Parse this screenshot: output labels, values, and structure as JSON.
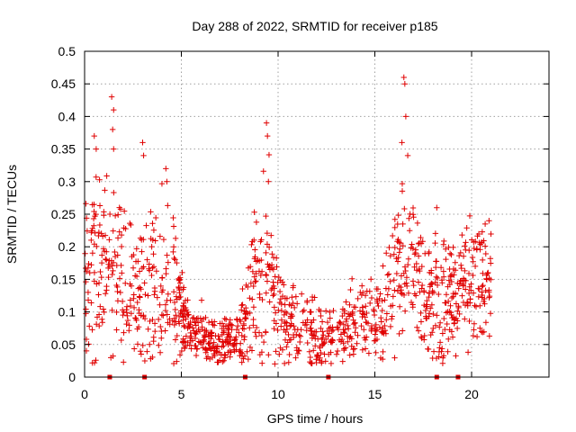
{
  "chart_data": {
    "type": "scatter",
    "title": "Day 288 of 2022, SRMTID for receiver p185",
    "xlabel": "GPS time / hours",
    "ylabel": "SRMTID / TECUs",
    "xlim": [
      0,
      24
    ],
    "ylim": [
      0,
      0.5
    ],
    "x_ticks": [
      0,
      5,
      10,
      15,
      20
    ],
    "x_tick_labels": [
      "0",
      "5",
      "10",
      "15",
      "20"
    ],
    "y_ticks": [
      0,
      0.05,
      0.1,
      0.15,
      0.2,
      0.25,
      0.3,
      0.35,
      0.4,
      0.45,
      0.5
    ],
    "y_tick_labels": [
      "0",
      "0.05",
      "0.1",
      "0.15",
      "0.2",
      "0.25",
      "0.3",
      "0.35",
      "0.4",
      "0.45",
      "0.5"
    ],
    "grid": true,
    "marker": "+",
    "color": "#e00000",
    "envelope": {
      "description": "approximate median and spread of the SRMTID point cloud versus time (hours, TECU)",
      "x": [
        0.0,
        0.5,
        1.0,
        1.5,
        2.0,
        2.5,
        3.0,
        3.5,
        4.0,
        4.5,
        5.0,
        5.5,
        6.0,
        6.5,
        7.0,
        7.5,
        8.0,
        8.5,
        9.0,
        9.5,
        10.0,
        10.5,
        11.0,
        11.5,
        12.0,
        12.5,
        13.0,
        13.5,
        14.0,
        14.5,
        15.0,
        15.5,
        16.0,
        16.5,
        17.0,
        17.5,
        18.0,
        18.5,
        19.0,
        19.5,
        20.0,
        20.5,
        21.0
      ],
      "median": [
        0.15,
        0.19,
        0.17,
        0.18,
        0.14,
        0.13,
        0.12,
        0.14,
        0.15,
        0.13,
        0.11,
        0.07,
        0.06,
        0.055,
        0.05,
        0.055,
        0.065,
        0.1,
        0.14,
        0.16,
        0.1,
        0.08,
        0.075,
        0.075,
        0.065,
        0.06,
        0.06,
        0.07,
        0.09,
        0.09,
        0.085,
        0.1,
        0.15,
        0.19,
        0.17,
        0.13,
        0.11,
        0.12,
        0.12,
        0.14,
        0.15,
        0.16,
        0.15
      ],
      "spread": [
        0.06,
        0.08,
        0.07,
        0.08,
        0.06,
        0.05,
        0.06,
        0.06,
        0.07,
        0.06,
        0.04,
        0.02,
        0.02,
        0.02,
        0.02,
        0.02,
        0.03,
        0.05,
        0.07,
        0.07,
        0.04,
        0.03,
        0.03,
        0.03,
        0.025,
        0.02,
        0.02,
        0.025,
        0.03,
        0.03,
        0.03,
        0.04,
        0.06,
        0.07,
        0.06,
        0.05,
        0.04,
        0.05,
        0.05,
        0.05,
        0.05,
        0.05,
        0.05
      ],
      "points_per_hour": 60
    },
    "spikes": [
      {
        "x": 0.5,
        "y": 0.37
      },
      {
        "x": 0.6,
        "y": 0.35
      },
      {
        "x": 1.4,
        "y": 0.43
      },
      {
        "x": 1.5,
        "y": 0.41
      },
      {
        "x": 1.45,
        "y": 0.38
      },
      {
        "x": 1.5,
        "y": 0.35
      },
      {
        "x": 3.0,
        "y": 0.36
      },
      {
        "x": 3.05,
        "y": 0.34
      },
      {
        "x": 4.2,
        "y": 0.32
      },
      {
        "x": 4.25,
        "y": 0.3
      },
      {
        "x": 9.4,
        "y": 0.39
      },
      {
        "x": 9.45,
        "y": 0.37
      },
      {
        "x": 9.5,
        "y": 0.3
      },
      {
        "x": 16.5,
        "y": 0.46
      },
      {
        "x": 16.55,
        "y": 0.45
      },
      {
        "x": 16.6,
        "y": 0.4
      },
      {
        "x": 16.4,
        "y": 0.36
      },
      {
        "x": 16.7,
        "y": 0.34
      },
      {
        "x": 18.2,
        "y": 0.26
      },
      {
        "x": 20.9,
        "y": 0.24
      }
    ],
    "gap_markers": [
      1.3,
      3.1,
      8.3,
      12.6,
      18.2,
      19.3
    ]
  }
}
